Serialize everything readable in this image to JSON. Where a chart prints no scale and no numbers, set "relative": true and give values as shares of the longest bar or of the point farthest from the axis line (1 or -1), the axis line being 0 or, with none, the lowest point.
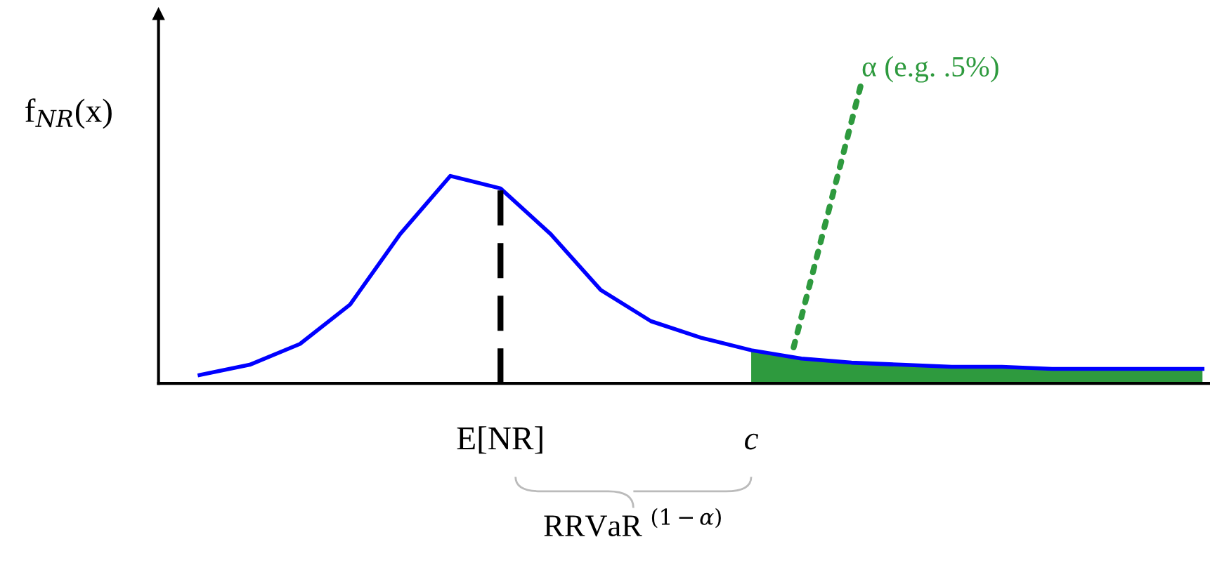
{
  "chart_data": {
    "type": "line",
    "relative": true,
    "ylabel": "f$_{NR}$(x)",
    "tick_labels": false,
    "legend": false,
    "categories": [
      null,
      null,
      null,
      null,
      null,
      null,
      null,
      null,
      null,
      null,
      null,
      null,
      null,
      null,
      null,
      null,
      null,
      null,
      null,
      null,
      null
    ],
    "series": [
      {
        "color": "#0000ff",
        "values": [
          0.04,
          0.09,
          0.19,
          0.38,
          0.72,
          1.0,
          0.94,
          0.72,
          0.45,
          0.3,
          0.22,
          0.16,
          0.12,
          0.1,
          0.09,
          0.08,
          0.08,
          0.07,
          0.07,
          0.07,
          0.07
        ]
      },
      {
        "type": "area",
        "color": "#2e9a3e",
        "values": [
          null,
          null,
          null,
          null,
          null,
          null,
          null,
          null,
          null,
          null,
          null,
          0.16,
          0.12,
          0.1,
          0.09,
          0.08,
          0.08,
          0.07,
          0.07,
          0.07,
          0.07
        ]
      }
    ],
    "annotations": [
      "E[NR]",
      "c",
      "α (e.g. .5%)",
      "RRVaR $^{(1−α)}$"
    ]
  }
}
